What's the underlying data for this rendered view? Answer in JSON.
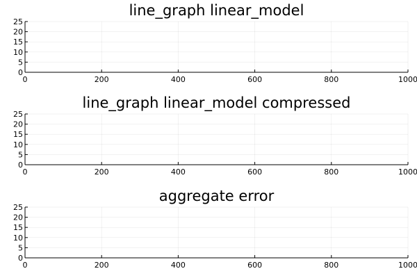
{
  "chart_data": [
    {
      "type": "line",
      "title": "line_graph linear_model",
      "xlabel": "",
      "ylabel": "",
      "xlim": [
        0,
        1000
      ],
      "ylim": [
        0,
        25
      ],
      "xticks": [
        0,
        200,
        400,
        600,
        800,
        1000
      ],
      "yticks": [
        0,
        5,
        10,
        15,
        20,
        25
      ],
      "grid": true,
      "legend": "none",
      "series": []
    },
    {
      "type": "line",
      "title": "line_graph linear_model compressed",
      "xlabel": "",
      "ylabel": "",
      "xlim": [
        0,
        1000
      ],
      "ylim": [
        0,
        25
      ],
      "xticks": [
        0,
        200,
        400,
        600,
        800,
        1000
      ],
      "yticks": [
        0,
        5,
        10,
        15,
        20,
        25
      ],
      "grid": true,
      "legend": "none",
      "series": []
    },
    {
      "type": "line",
      "title": "aggregate error",
      "xlabel": "",
      "ylabel": "",
      "xlim": [
        0,
        1000
      ],
      "ylim": [
        0,
        25
      ],
      "xticks": [
        0,
        200,
        400,
        600,
        800,
        1000
      ],
      "yticks": [
        0,
        5,
        10,
        15,
        20,
        25
      ],
      "grid": true,
      "legend": "none",
      "series": []
    }
  ]
}
